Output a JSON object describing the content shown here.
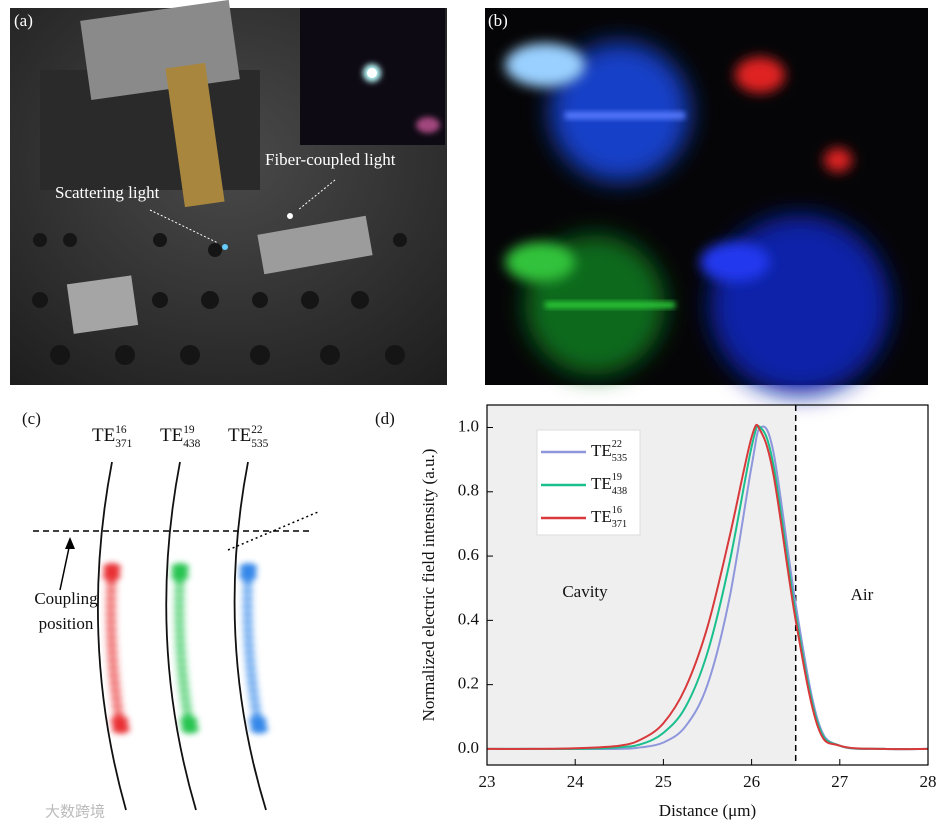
{
  "panels": {
    "a": {
      "label": "(a)",
      "scattering": "Scattering light",
      "fiber": "Fiber-coupled light"
    },
    "b": {
      "label": "(b)"
    },
    "c": {
      "label": "(c)",
      "modes": [
        {
          "base": "TE",
          "sup": "16",
          "sub": "371"
        },
        {
          "base": "TE",
          "sup": "19",
          "sub": "438"
        },
        {
          "base": "TE",
          "sup": "22",
          "sub": "535"
        }
      ],
      "coupling": [
        "Coupling",
        "position"
      ]
    },
    "d": {
      "label": "(d)"
    }
  },
  "watermark": "大数跨境",
  "chart_data": {
    "type": "line",
    "xlabel": "Distance (μm)",
    "ylabel": "Normalized electric field intensity (a.u.)",
    "annotations": [
      "Cavity",
      "Air"
    ],
    "boundary_x": 26.5,
    "xlim": [
      23,
      28
    ],
    "xticks": [
      23,
      24,
      25,
      26,
      27,
      28
    ],
    "ylim": [
      -0.05,
      1.07
    ],
    "yticks": [
      {
        "value": 0,
        "label": "0.0"
      },
      {
        "value": 0.2,
        "label": "0.2"
      },
      {
        "value": 0.4,
        "label": "0.4"
      },
      {
        "value": 0.6,
        "label": "0.6"
      },
      {
        "value": 0.8,
        "label": "0.8"
      },
      {
        "value": 1,
        "label": "1.0"
      }
    ],
    "x": [
      23,
      23.5,
      24,
      24.5,
      24.75,
      25,
      25.25,
      25.5,
      25.75,
      26,
      26.1,
      26.25,
      26.5,
      26.75,
      27,
      27.5,
      28
    ],
    "series": [
      {
        "name": {
          "base": "TE",
          "sup": "22",
          "sub": "535"
        },
        "color": "#8e96dc",
        "values": [
          0,
          0,
          0,
          0,
          0.005,
          0.02,
          0.07,
          0.2,
          0.47,
          0.88,
          1.0,
          0.92,
          0.45,
          0.09,
          0.01,
          0,
          0
        ]
      },
      {
        "name": {
          "base": "TE",
          "sup": "19",
          "sub": "438"
        },
        "color": "#1abf8e",
        "values": [
          0,
          0,
          0,
          0.005,
          0.015,
          0.05,
          0.13,
          0.3,
          0.58,
          0.94,
          1.0,
          0.88,
          0.42,
          0.08,
          0.01,
          0,
          0
        ]
      },
      {
        "name": {
          "base": "TE",
          "sup": "16",
          "sub": "371"
        },
        "color": "#d8393b",
        "values": [
          0,
          0,
          0.002,
          0.01,
          0.03,
          0.08,
          0.19,
          0.38,
          0.66,
          0.97,
          0.99,
          0.85,
          0.4,
          0.07,
          0.01,
          0,
          0
        ]
      }
    ]
  }
}
